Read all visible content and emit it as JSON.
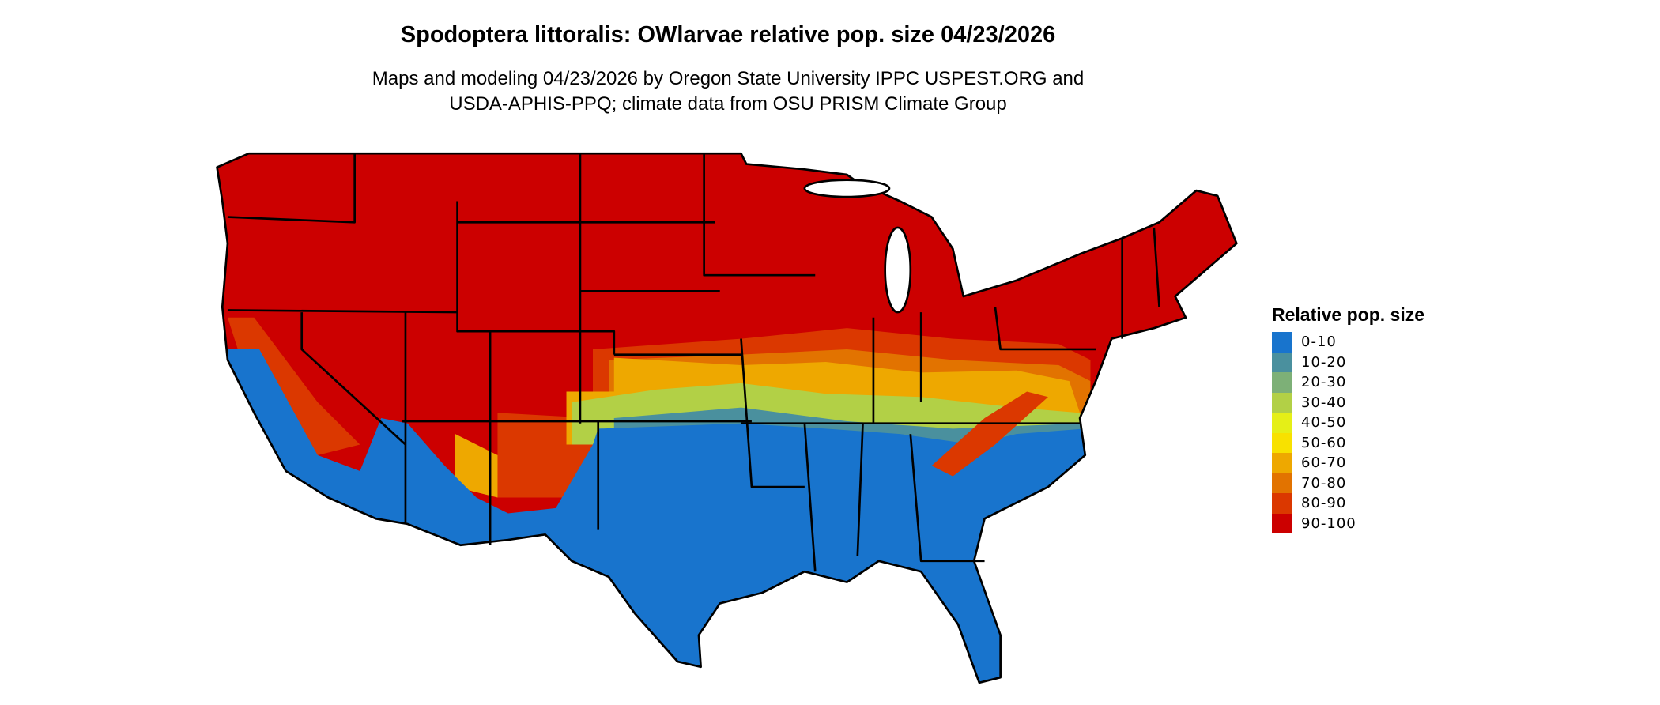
{
  "title": "Spodoptera littoralis: OWlarvae relative pop. size 04/23/2026",
  "subtitle_line1": "Maps and modeling 04/23/2026 by Oregon State University IPPC USPEST.ORG and",
  "subtitle_line2": "USDA-APHIS-PPQ; climate data from OSU PRISM Climate Group",
  "legend": {
    "title": "Relative pop. size",
    "items": [
      {
        "label": "0-10",
        "color": "#1874CD"
      },
      {
        "label": "10-20",
        "color": "#4A909E"
      },
      {
        "label": "20-30",
        "color": "#7DB077"
      },
      {
        "label": "30-40",
        "color": "#B2D046"
      },
      {
        "label": "40-50",
        "color": "#E5EF17"
      },
      {
        "label": "50-60",
        "color": "#F8E100"
      },
      {
        "label": "60-70",
        "color": "#EEA800"
      },
      {
        "label": "70-80",
        "color": "#E27300"
      },
      {
        "label": "80-90",
        "color": "#DB3800"
      },
      {
        "label": "90-100",
        "color": "#CC0000"
      }
    ]
  }
}
